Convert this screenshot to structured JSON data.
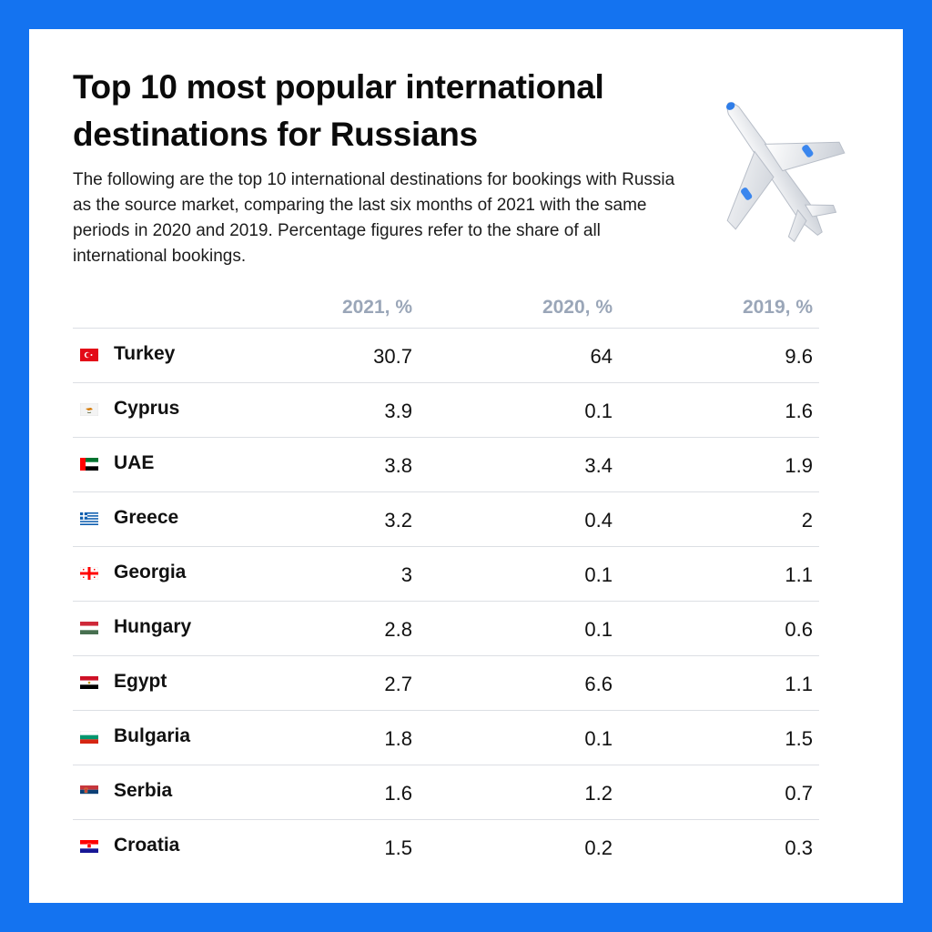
{
  "title": "Top 10 most popular international destinations for Russians",
  "intro": "The following are the top 10 international destinations for bookings with Russia as the source market, comparing the last six months of 2021 with the same periods in 2020 and 2019. Percentage figures refer to the share of all international bookings.",
  "colors": {
    "background": "#1473f0",
    "header_text": "#9aa6b8",
    "divider": "#dcdfe4"
  },
  "chart_data": {
    "type": "table",
    "columns": [
      "2021, %",
      "2020, %",
      "2019, %"
    ],
    "rows": [
      {
        "country": "Turkey",
        "flag": "turkey-flag-icon",
        "values": [
          "30.7",
          "64",
          "9.6"
        ]
      },
      {
        "country": "Cyprus",
        "flag": "cyprus-flag-icon",
        "values": [
          "3.9",
          "0.1",
          "1.6"
        ]
      },
      {
        "country": "UAE",
        "flag": "uae-flag-icon",
        "values": [
          "3.8",
          "3.4",
          "1.9"
        ]
      },
      {
        "country": "Greece",
        "flag": "greece-flag-icon",
        "values": [
          "3.2",
          "0.4",
          "2"
        ]
      },
      {
        "country": "Georgia",
        "flag": "georgia-flag-icon",
        "values": [
          "3",
          "0.1",
          "1.1"
        ]
      },
      {
        "country": "Hungary",
        "flag": "hungary-flag-icon",
        "values": [
          "2.8",
          "0.1",
          "0.6"
        ]
      },
      {
        "country": "Egypt",
        "flag": "egypt-flag-icon",
        "values": [
          "2.7",
          "6.6",
          "1.1"
        ]
      },
      {
        "country": "Bulgaria",
        "flag": "bulgaria-flag-icon",
        "values": [
          "1.8",
          "0.1",
          "1.5"
        ]
      },
      {
        "country": "Serbia",
        "flag": "serbia-flag-icon",
        "values": [
          "1.6",
          "1.2",
          "0.7"
        ]
      },
      {
        "country": "Croatia",
        "flag": "croatia-flag-icon",
        "values": [
          "1.5",
          "0.2",
          "0.3"
        ]
      }
    ]
  }
}
